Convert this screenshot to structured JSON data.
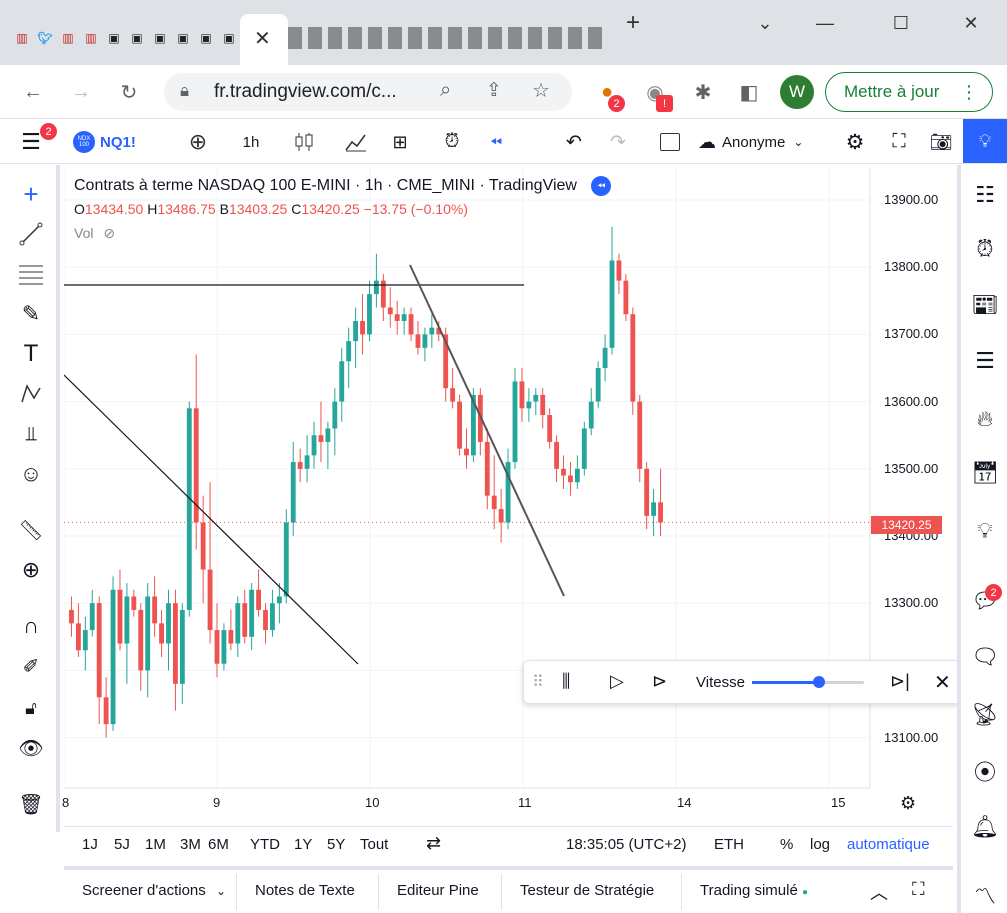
{
  "browser": {
    "tabs": [
      {
        "icon": "chart-icon"
      },
      {
        "icon": "twitter-icon"
      },
      {
        "icon": "chart-icon"
      },
      {
        "icon": "chart-icon"
      },
      {
        "icon": "app-icon"
      },
      {
        "icon": "app-icon"
      },
      {
        "icon": "app-icon"
      },
      {
        "icon": "app-icon"
      },
      {
        "icon": "app-icon"
      },
      {
        "icon": "app-icon"
      }
    ],
    "url": "fr.tradingview.com/c...",
    "update_label": "Mettre à jour",
    "profile_initial": "W",
    "ext_badge": "2",
    "ext_badge2": "!"
  },
  "toolbar": {
    "menu_badge": "2",
    "symbol": "NQ1!",
    "symbol_logo": "NDX 100",
    "interval": "1h",
    "account": "Anonyme"
  },
  "legend": {
    "title": "Contrats à terme NASDAQ 100 E-MINI · 1h · CME_MINI · TradingView",
    "o_label": "O",
    "o": "13434.50",
    "h_label": "H",
    "h": "13486.75",
    "b_label": "B",
    "b": "13403.25",
    "c_label": "C",
    "c": "13420.25",
    "change": "−13.75 (−0.10%)",
    "vol": "Vol"
  },
  "price_axis": {
    "labels": [
      "13900.00",
      "13800.00",
      "13700.00",
      "13600.00",
      "13500.00",
      "13400.00",
      "13300.00",
      "13100.00"
    ],
    "last_price": "13420.25"
  },
  "time_axis": {
    "labels": [
      "8",
      "9",
      "10",
      "11",
      "14",
      "15"
    ]
  },
  "replay": {
    "speed_label": "Vitesse",
    "speed_value": 0.6
  },
  "ranges": {
    "buttons": [
      "1J",
      "5J",
      "1M",
      "3M",
      "6M",
      "YTD",
      "1Y",
      "5Y",
      "Tout"
    ],
    "clock": "18:35:05 (UTC+2)",
    "session": "ETH",
    "percent": "%",
    "log": "log",
    "auto": "automatique"
  },
  "bottom": {
    "tabs": [
      "Screener d'actions",
      "Notes de Texte",
      "Editeur Pine",
      "Testeur de Stratégie",
      "Trading simulé"
    ]
  },
  "right_badge": "2",
  "colors": {
    "up": "#26a69a",
    "down": "#ef5350",
    "accent": "#2962ff"
  },
  "chart_data": {
    "type": "candlestick",
    "title": "Contrats à terme NASDAQ 100 E-MINI · 1h · CME_MINI · TradingView",
    "ylim": [
      13050,
      13950
    ],
    "candles": [
      [
        13290,
        13310,
        13250,
        13270
      ],
      [
        13270,
        13300,
        13220,
        13230
      ],
      [
        13230,
        13280,
        13200,
        13260
      ],
      [
        13260,
        13320,
        13250,
        13300
      ],
      [
        13300,
        13310,
        13120,
        13160
      ],
      [
        13160,
        13190,
        13100,
        13120
      ],
      [
        13120,
        13340,
        13110,
        13320
      ],
      [
        13320,
        13350,
        13230,
        13240
      ],
      [
        13240,
        13330,
        13180,
        13310
      ],
      [
        13310,
        13320,
        13280,
        13290
      ],
      [
        13290,
        13300,
        13170,
        13200
      ],
      [
        13200,
        13330,
        13160,
        13310
      ],
      [
        13310,
        13340,
        13250,
        13270
      ],
      [
        13270,
        13290,
        13220,
        13240
      ],
      [
        13240,
        13320,
        13200,
        13300
      ],
      [
        13300,
        13320,
        13140,
        13180
      ],
      [
        13180,
        13300,
        13150,
        13290
      ],
      [
        13290,
        13600,
        13280,
        13590
      ],
      [
        13590,
        13670,
        13380,
        13420
      ],
      [
        13420,
        13460,
        13300,
        13350
      ],
      [
        13350,
        13480,
        13240,
        13260
      ],
      [
        13260,
        13300,
        13190,
        13210
      ],
      [
        13210,
        13270,
        13200,
        13260
      ],
      [
        13260,
        13290,
        13230,
        13240
      ],
      [
        13240,
        13310,
        13220,
        13300
      ],
      [
        13300,
        13320,
        13240,
        13250
      ],
      [
        13250,
        13330,
        13230,
        13320
      ],
      [
        13320,
        13350,
        13280,
        13290
      ],
      [
        13290,
        13300,
        13240,
        13260
      ],
      [
        13260,
        13320,
        13250,
        13300
      ],
      [
        13300,
        13330,
        13270,
        13310
      ],
      [
        13310,
        13440,
        13300,
        13420
      ],
      [
        13420,
        13540,
        13400,
        13510
      ],
      [
        13510,
        13530,
        13480,
        13500
      ],
      [
        13500,
        13550,
        13480,
        13520
      ],
      [
        13520,
        13570,
        13500,
        13550
      ],
      [
        13550,
        13600,
        13510,
        13540
      ],
      [
        13540,
        13570,
        13500,
        13560
      ],
      [
        13560,
        13620,
        13520,
        13600
      ],
      [
        13600,
        13680,
        13570,
        13660
      ],
      [
        13660,
        13710,
        13620,
        13690
      ],
      [
        13690,
        13740,
        13650,
        13720
      ],
      [
        13720,
        13760,
        13670,
        13700
      ],
      [
        13700,
        13780,
        13690,
        13760
      ],
      [
        13760,
        13820,
        13740,
        13780
      ],
      [
        13780,
        13790,
        13720,
        13740
      ],
      [
        13740,
        13770,
        13710,
        13730
      ],
      [
        13730,
        13750,
        13700,
        13720
      ],
      [
        13720,
        13740,
        13700,
        13730
      ],
      [
        13730,
        13740,
        13690,
        13700
      ],
      [
        13700,
        13720,
        13670,
        13680
      ],
      [
        13680,
        13710,
        13660,
        13700
      ],
      [
        13700,
        13730,
        13680,
        13710
      ],
      [
        13710,
        13720,
        13690,
        13700
      ],
      [
        13700,
        13710,
        13600,
        13620
      ],
      [
        13620,
        13650,
        13590,
        13600
      ],
      [
        13600,
        13610,
        13520,
        13530
      ],
      [
        13530,
        13560,
        13500,
        13520
      ],
      [
        13520,
        13620,
        13510,
        13610
      ],
      [
        13610,
        13620,
        13520,
        13540
      ],
      [
        13540,
        13560,
        13440,
        13460
      ],
      [
        13460,
        13520,
        13410,
        13440
      ],
      [
        13440,
        13470,
        13390,
        13420
      ],
      [
        13420,
        13530,
        13410,
        13510
      ],
      [
        13510,
        13650,
        13500,
        13630
      ],
      [
        13630,
        13650,
        13570,
        13590
      ],
      [
        13590,
        13620,
        13570,
        13600
      ],
      [
        13600,
        13620,
        13580,
        13610
      ],
      [
        13610,
        13620,
        13560,
        13580
      ],
      [
        13580,
        13590,
        13530,
        13540
      ],
      [
        13540,
        13550,
        13480,
        13500
      ],
      [
        13500,
        13520,
        13470,
        13490
      ],
      [
        13490,
        13510,
        13460,
        13480
      ],
      [
        13480,
        13520,
        13470,
        13500
      ],
      [
        13500,
        13570,
        13490,
        13560
      ],
      [
        13560,
        13620,
        13550,
        13600
      ],
      [
        13600,
        13660,
        13590,
        13650
      ],
      [
        13650,
        13700,
        13630,
        13680
      ],
      [
        13680,
        13860,
        13670,
        13810
      ],
      [
        13810,
        13820,
        13760,
        13780
      ],
      [
        13780,
        13790,
        13720,
        13730
      ],
      [
        13730,
        13740,
        13580,
        13600
      ],
      [
        13600,
        13610,
        13480,
        13500
      ],
      [
        13500,
        13510,
        13410,
        13430
      ],
      [
        13430,
        13470,
        13400,
        13450
      ],
      [
        13450,
        13500,
        13400,
        13420
      ]
    ]
  }
}
